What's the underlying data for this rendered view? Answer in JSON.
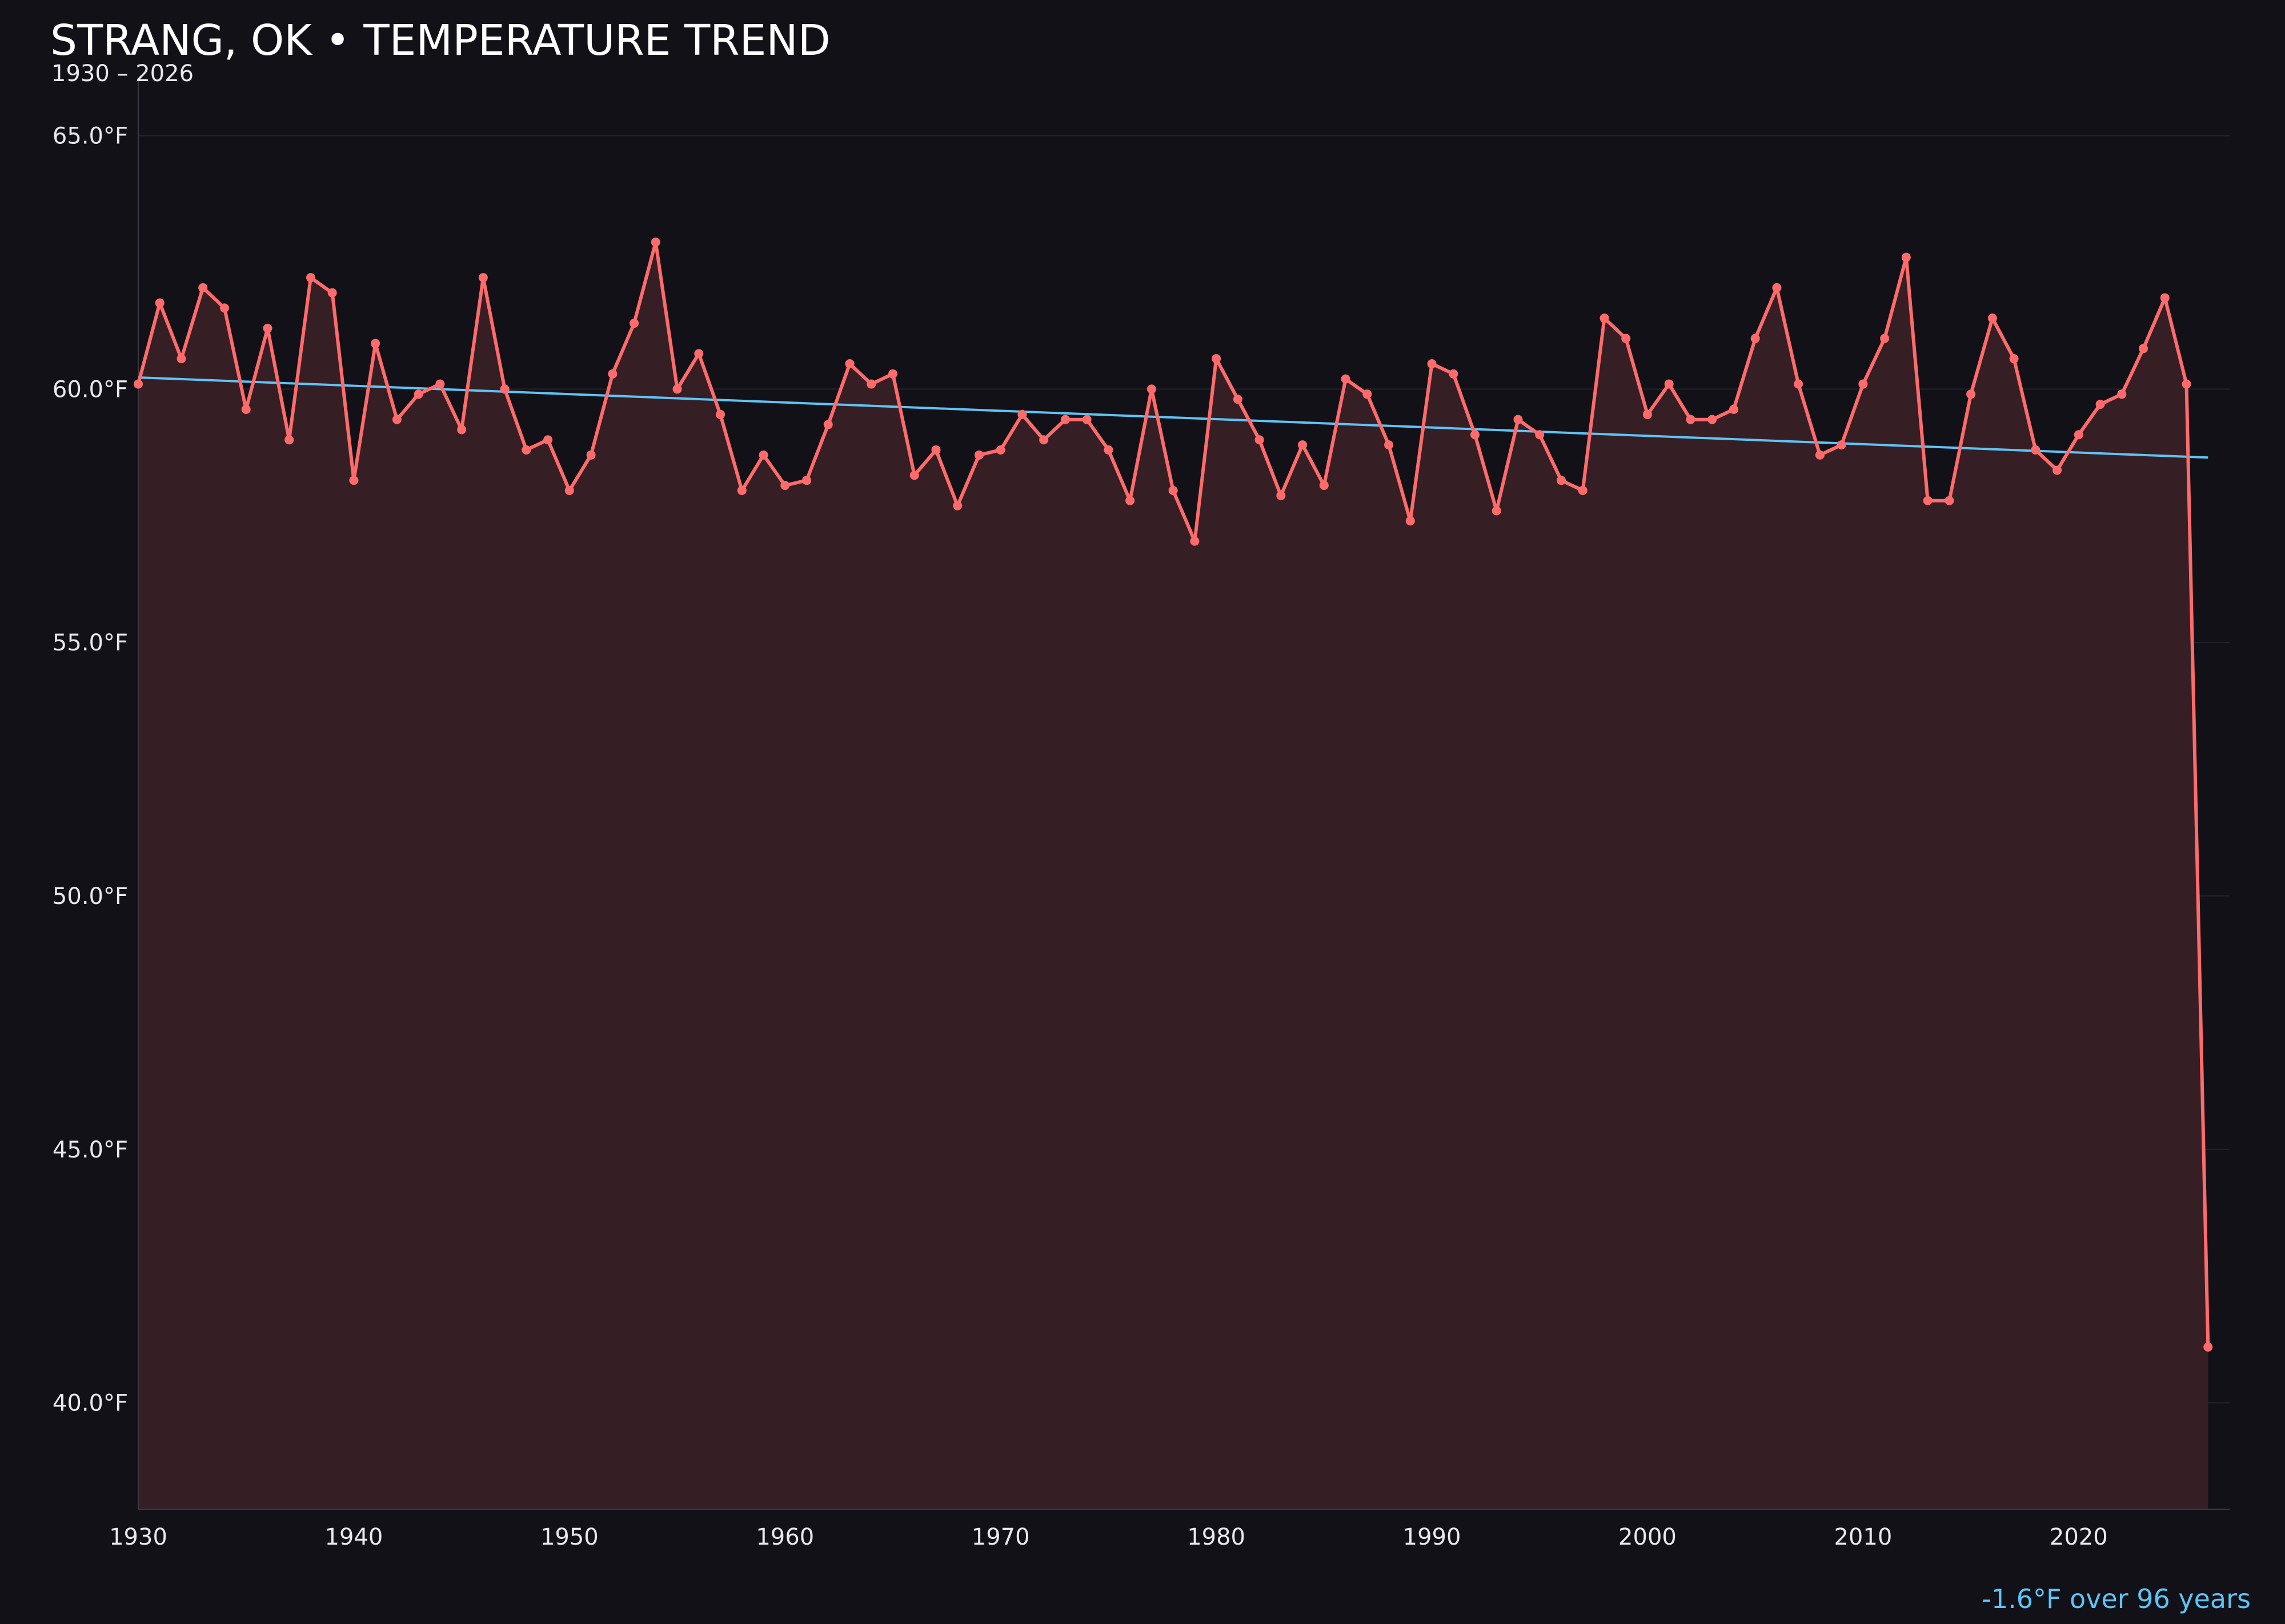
{
  "chart_data": {
    "type": "line",
    "title": "STRANG, OK • TEMPERATURE TREND",
    "subtitle": "1930 – 2026",
    "annotation": "-1.6°F over 96 years",
    "xlim": [
      1930,
      2027
    ],
    "ylim": [
      37.9,
      66.1
    ],
    "y_ticks": [
      40,
      45,
      50,
      55,
      60,
      65
    ],
    "y_tick_labels": [
      "40.0°F",
      "45.0°F",
      "50.0°F",
      "55.0°F",
      "60.0°F",
      "65.0°F"
    ],
    "x_ticks": [
      1930,
      1940,
      1950,
      1960,
      1970,
      1980,
      1990,
      2000,
      2010,
      2020
    ],
    "x_tick_labels": [
      "1930",
      "1940",
      "1950",
      "1960",
      "1970",
      "1980",
      "1990",
      "2000",
      "2010",
      "2020"
    ],
    "grid": true,
    "colors": {
      "background": "#121118",
      "series": "#ff6b6b",
      "fill": "#351f25",
      "trend": "#5fc4f5",
      "text": "#ffffff"
    },
    "x": [
      1930,
      1931,
      1932,
      1933,
      1934,
      1935,
      1936,
      1937,
      1938,
      1939,
      1940,
      1941,
      1942,
      1943,
      1944,
      1945,
      1946,
      1947,
      1948,
      1949,
      1950,
      1951,
      1952,
      1953,
      1954,
      1955,
      1956,
      1957,
      1958,
      1959,
      1960,
      1961,
      1962,
      1963,
      1964,
      1965,
      1966,
      1967,
      1968,
      1969,
      1970,
      1971,
      1972,
      1973,
      1974,
      1975,
      1976,
      1977,
      1978,
      1979,
      1980,
      1981,
      1982,
      1983,
      1984,
      1985,
      1986,
      1987,
      1988,
      1989,
      1990,
      1991,
      1992,
      1993,
      1994,
      1995,
      1996,
      1997,
      1998,
      1999,
      2000,
      2001,
      2002,
      2003,
      2004,
      2005,
      2006,
      2007,
      2008,
      2009,
      2010,
      2011,
      2012,
      2013,
      2014,
      2015,
      2016,
      2017,
      2018,
      2019,
      2020,
      2021,
      2022,
      2023,
      2024,
      2025,
      2026
    ],
    "series": [
      {
        "values": [
          60.1,
          61.7,
          60.6,
          62.0,
          61.6,
          59.6,
          61.2,
          59.0,
          62.2,
          61.9,
          58.2,
          60.9,
          59.4,
          59.9,
          60.1,
          59.2,
          62.2,
          60.0,
          58.8,
          59.0,
          58.0,
          58.7,
          60.3,
          61.3,
          62.9,
          60.0,
          60.7,
          59.5,
          58.0,
          58.7,
          58.1,
          58.2,
          59.3,
          60.5,
          60.1,
          60.3,
          58.3,
          58.8,
          57.7,
          58.7,
          58.8,
          59.5,
          59.0,
          59.4,
          59.4,
          58.8,
          57.8,
          60.0,
          58.0,
          57.0,
          60.6,
          59.8,
          59.0,
          57.9,
          58.9,
          58.1,
          60.2,
          59.9,
          58.9,
          57.4,
          60.5,
          60.3,
          59.1,
          57.6,
          59.4,
          59.1,
          58.2,
          58.0,
          61.4,
          61.0,
          59.5,
          60.1,
          59.4,
          59.4,
          59.6,
          61.0,
          62.0,
          60.1,
          58.7,
          58.9,
          60.1,
          61.0,
          62.6,
          57.8,
          57.8,
          59.9,
          61.4,
          60.6,
          58.8,
          58.4,
          59.1,
          59.7,
          59.9,
          60.8,
          61.8,
          60.1,
          41.1
        ]
      }
    ],
    "trend": {
      "x": [
        1930,
        2026
      ],
      "y": [
        60.23,
        58.65
      ]
    }
  }
}
